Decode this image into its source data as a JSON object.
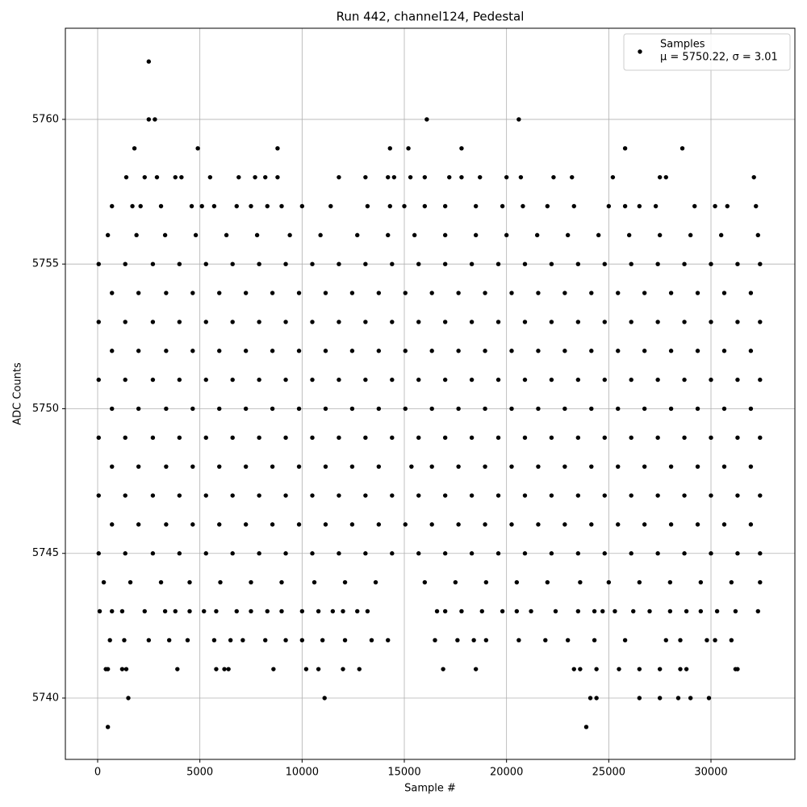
{
  "chart_data": {
    "type": "scatter",
    "title": "Run 442, channel124, Pedestal",
    "x_label": "Sample #",
    "y_label": "ADC Counts",
    "xlim": [
      -1579,
      34105
    ],
    "ylim": [
      5737.88,
      5763.15
    ],
    "xticks": [
      0,
      5000,
      10000,
      15000,
      20000,
      25000,
      30000
    ],
    "yticks": [
      5740,
      5745,
      5750,
      5755,
      5760
    ],
    "grid": true,
    "legend": "upper right",
    "series": [
      {
        "name": "Samples",
        "stats_label": "μ = 5750.22, σ = 3.01",
        "color": "#000000",
        "points": [
          {
            "y": 5745,
            "x": [
              50,
              1350,
              2700,
              4000,
              5300,
              6600,
              7900,
              9200,
              10500,
              11800,
              13100,
              14400,
              15700,
              17000,
              18300,
              19600,
              20900,
              22200,
              23500,
              24800,
              26100,
              27400,
              28700,
              30000,
              31300,
              32400
            ]
          },
          {
            "y": 5746,
            "x": [
              700,
              2000,
              3350,
              4650,
              5950,
              7250,
              8550,
              9850,
              11150,
              12450,
              13750,
              15050,
              16350,
              17650,
              18950,
              20250,
              21550,
              22850,
              24150,
              25450,
              26750,
              28050,
              29350,
              30650,
              31950
            ]
          },
          {
            "y": 5747,
            "x": [
              50,
              1350,
              2700,
              4000,
              5300,
              6600,
              7900,
              9200,
              10500,
              11800,
              13100,
              14400,
              15700,
              17000,
              18300,
              19600,
              20900,
              22200,
              23500,
              24800,
              26100,
              27400,
              28700,
              30000,
              31300,
              32400
            ]
          },
          {
            "y": 5748,
            "x": [
              700,
              2000,
              3350,
              4650,
              5950,
              7250,
              8550,
              9850,
              11150,
              12450,
              13750,
              15350,
              16350,
              17650,
              18950,
              20250,
              21550,
              22850,
              24150,
              25450,
              26750,
              28050,
              29350,
              30650,
              31950
            ]
          },
          {
            "y": 5749,
            "x": [
              50,
              1350,
              2700,
              4000,
              5300,
              6600,
              7900,
              9200,
              10500,
              11800,
              13100,
              14400,
              15700,
              17000,
              18300,
              19600,
              20900,
              22200,
              23500,
              24800,
              26100,
              27400,
              28700,
              30000,
              31300,
              32400
            ]
          },
          {
            "y": 5750,
            "x": [
              700,
              2000,
              3350,
              4650,
              5950,
              7250,
              8550,
              9850,
              11150,
              12450,
              13750,
              15050,
              16350,
              17650,
              18950,
              20250,
              21550,
              22850,
              24150,
              25450,
              26750,
              28050,
              29350,
              30650,
              31950
            ]
          },
          {
            "y": 5751,
            "x": [
              50,
              1350,
              2700,
              4000,
              5300,
              6600,
              7900,
              9200,
              10500,
              11800,
              13100,
              14400,
              15700,
              17000,
              18300,
              19600,
              20900,
              22200,
              23500,
              24800,
              26100,
              27400,
              28700,
              30000,
              31300,
              32400
            ]
          },
          {
            "y": 5752,
            "x": [
              700,
              2000,
              3350,
              4650,
              5950,
              7250,
              8550,
              9850,
              11150,
              12450,
              13750,
              15050,
              16350,
              17650,
              18950,
              20250,
              21550,
              22850,
              24150,
              25450,
              26750,
              28050,
              29350,
              30650,
              31950
            ]
          },
          {
            "y": 5753,
            "x": [
              50,
              1350,
              2700,
              4000,
              5300,
              6600,
              7900,
              9200,
              10500,
              11800,
              13100,
              14400,
              15700,
              17000,
              18300,
              19600,
              20900,
              22200,
              23500,
              24800,
              26100,
              27400,
              28700,
              30000,
              31300,
              32400
            ]
          },
          {
            "y": 5754,
            "x": [
              700,
              2000,
              3350,
              4650,
              5950,
              7250,
              8550,
              9850,
              11150,
              12450,
              13750,
              15050,
              16350,
              17650,
              18950,
              20250,
              21550,
              22850,
              24150,
              25450,
              26750,
              28050,
              29350,
              30650,
              31950
            ]
          },
          {
            "y": 5755,
            "x": [
              50,
              1350,
              2700,
              4000,
              5300,
              6600,
              7900,
              9200,
              10500,
              11800,
              13100,
              14400,
              15700,
              17000,
              18300,
              19600,
              20900,
              22200,
              23500,
              24800,
              26100,
              27400,
              28700,
              30000,
              31300,
              32400
            ]
          },
          {
            "y": 5744,
            "x": [
              300,
              1600,
              3100,
              4500,
              6000,
              7500,
              9000,
              10600,
              12100,
              13600,
              16000,
              17500,
              19000,
              20500,
              22000,
              23600,
              25000,
              26500,
              28000,
              29500,
              31000,
              32400
            ]
          },
          {
            "y": 5756,
            "x": [
              500,
              1900,
              3300,
              4800,
              6300,
              7800,
              9400,
              10900,
              12700,
              14200,
              15500,
              17000,
              18500,
              20000,
              21500,
              23000,
              24500,
              26000,
              27500,
              29000,
              30500,
              32300
            ]
          },
          {
            "y": 5743,
            "x": [
              100,
              700,
              1200,
              2300,
              3300,
              3800,
              4500,
              5200,
              5800,
              6800,
              7500,
              8300,
              9000,
              10000,
              10800,
              11500,
              12000,
              12700,
              13200,
              16600,
              17000,
              17800,
              18800,
              19800,
              20500,
              21200,
              22400,
              23500,
              24300,
              24700,
              25300,
              26200,
              27000,
              28000,
              28800,
              29500,
              30300,
              31200,
              32300
            ]
          },
          {
            "y": 5757,
            "x": [
              700,
              1700,
              2100,
              3100,
              4600,
              5100,
              5700,
              6800,
              7500,
              8300,
              9000,
              10000,
              11400,
              13200,
              14300,
              15000,
              16000,
              17000,
              18500,
              19800,
              20800,
              22000,
              23300,
              25000,
              25800,
              26500,
              27300,
              29200,
              30200,
              30800,
              32200
            ]
          },
          {
            "y": 5742,
            "x": [
              600,
              1300,
              2500,
              3500,
              4400,
              5700,
              6500,
              7100,
              8200,
              9200,
              10000,
              11000,
              12100,
              13400,
              14200,
              16500,
              17600,
              18400,
              19000,
              20600,
              21900,
              23000,
              24300,
              25800,
              27800,
              28500,
              29800,
              30200,
              31000
            ]
          },
          {
            "y": 5758,
            "x": [
              1400,
              2300,
              2900,
              3800,
              4100,
              5500,
              6900,
              7700,
              8200,
              8800,
              11800,
              13100,
              14200,
              14500,
              15300,
              16000,
              17200,
              17800,
              18700,
              20000,
              20700,
              22300,
              23200,
              25200,
              27500,
              27800,
              32100
            ]
          },
          {
            "y": 5741,
            "x": [
              400,
              500,
              1200,
              1400,
              3900,
              5800,
              6200,
              6400,
              8600,
              10200,
              10800,
              12000,
              12800,
              16900,
              18500,
              23300,
              23600,
              24400,
              25500,
              26500,
              27500,
              28500,
              28800,
              31200,
              31300
            ]
          },
          {
            "y": 5759,
            "x": [
              1800,
              4900,
              8800,
              14300,
              15200,
              17800,
              25800,
              28600
            ]
          },
          {
            "y": 5740,
            "x": [
              1500,
              11100,
              24100,
              24400,
              26500,
              27500,
              28400,
              29000,
              29900
            ]
          },
          {
            "y": 5760,
            "x": [
              2500,
              2800,
              16100,
              20600
            ]
          },
          {
            "y": 5739,
            "x": [
              500,
              23900
            ]
          },
          {
            "y": 5762,
            "x": [
              2500
            ]
          }
        ]
      }
    ]
  }
}
